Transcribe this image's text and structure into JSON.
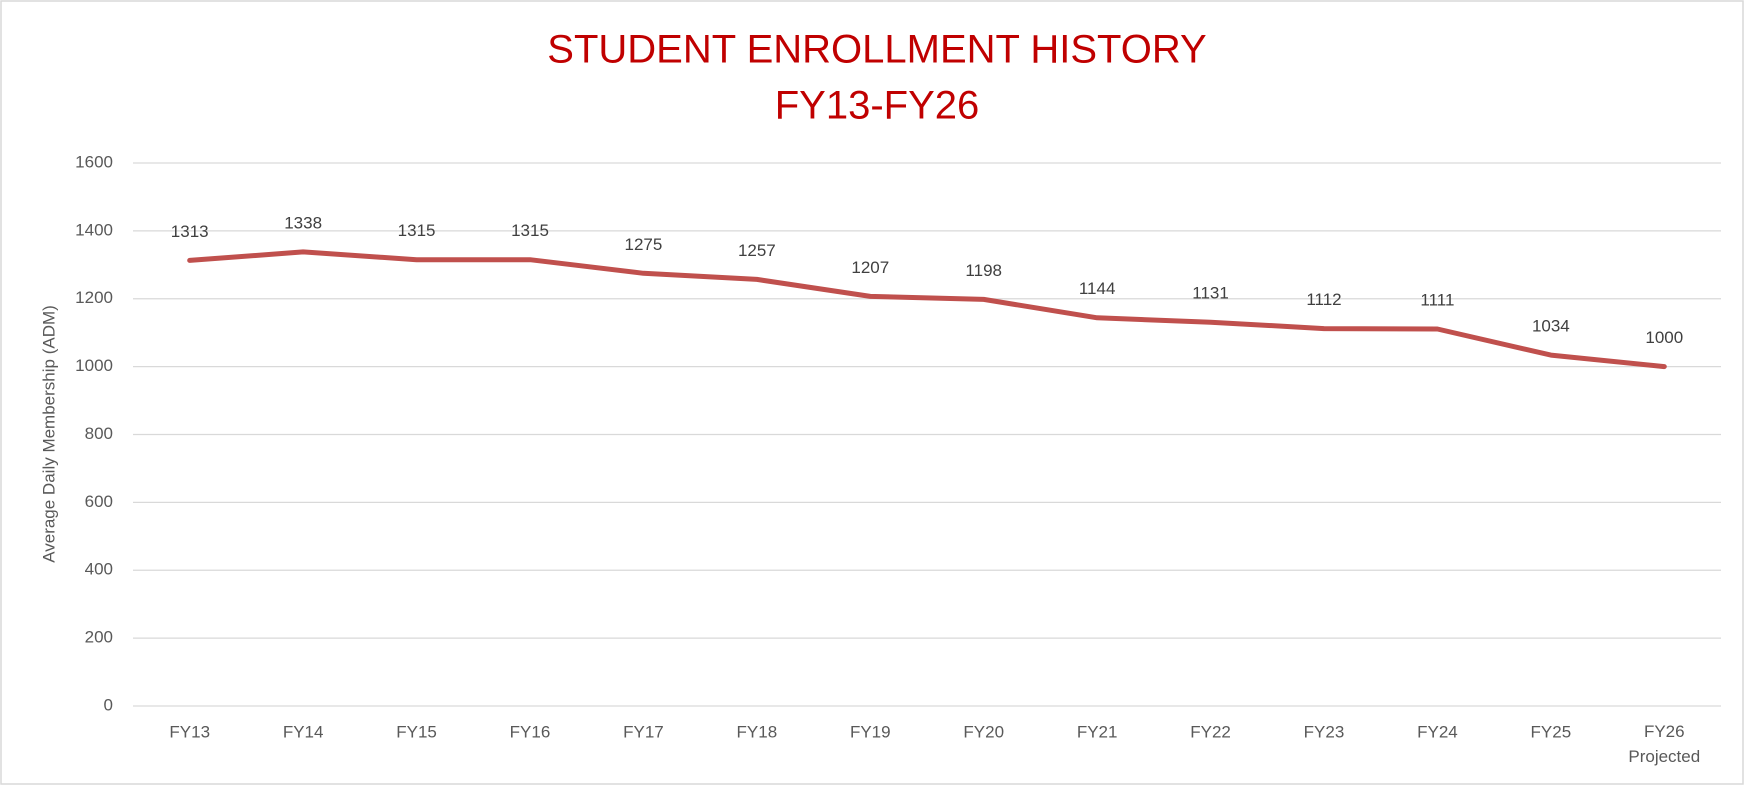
{
  "chart_data": {
    "type": "line",
    "title": "STUDENT ENROLLMENT HISTORY",
    "subtitle": "FY13-FY26",
    "y_label": "Average Daily Membership (ADM)",
    "categories": [
      "FY13",
      "FY14",
      "FY15",
      "FY16",
      "FY17",
      "FY18",
      "FY19",
      "FY20",
      "FY21",
      "FY22",
      "FY23",
      "FY24",
      "FY25",
      "FY26\nProjected"
    ],
    "series": [
      {
        "name": "ADM",
        "color": "#c0504d",
        "values": [
          1313,
          1338,
          1315,
          1315,
          1275,
          1257,
          1207,
          1198,
          1144,
          1131,
          1112,
          1111,
          1034,
          1000
        ]
      }
    ],
    "ylim": [
      0,
      1600
    ],
    "yticks": [
      0,
      200,
      400,
      600,
      800,
      1000,
      1200,
      1400,
      1600
    ],
    "grid": true
  }
}
